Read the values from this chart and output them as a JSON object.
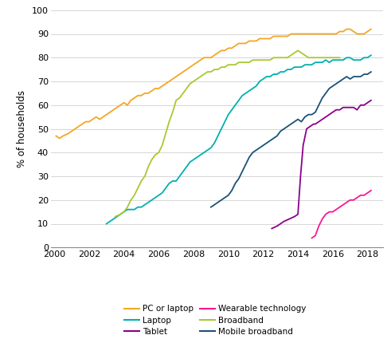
{
  "ylabel": "% of households",
  "xlim": [
    1999.8,
    2018.9
  ],
  "ylim": [
    0,
    100
  ],
  "xticks": [
    2000,
    2002,
    2004,
    2006,
    2008,
    2010,
    2012,
    2014,
    2016,
    2018
  ],
  "yticks": [
    0,
    10,
    20,
    30,
    40,
    50,
    60,
    70,
    80,
    90,
    100
  ],
  "background_color": "#ffffff",
  "grid_color": "#d0d0d0",
  "series": [
    {
      "name": "PC or laptop",
      "color": "#f5a623",
      "x": [
        2000.1,
        2000.3,
        2000.5,
        2000.8,
        2001.0,
        2001.2,
        2001.4,
        2001.6,
        2001.8,
        2002.0,
        2002.2,
        2002.4,
        2002.6,
        2002.8,
        2003.0,
        2003.2,
        2003.4,
        2003.6,
        2003.8,
        2004.0,
        2004.2,
        2004.4,
        2004.6,
        2004.8,
        2005.0,
        2005.2,
        2005.4,
        2005.6,
        2005.8,
        2006.0,
        2006.2,
        2006.4,
        2006.6,
        2006.8,
        2007.0,
        2007.2,
        2007.4,
        2007.6,
        2007.8,
        2008.0,
        2008.2,
        2008.4,
        2008.6,
        2008.8,
        2009.0,
        2009.2,
        2009.4,
        2009.6,
        2009.8,
        2010.0,
        2010.2,
        2010.4,
        2010.6,
        2010.8,
        2011.0,
        2011.2,
        2011.4,
        2011.6,
        2011.8,
        2012.0,
        2012.2,
        2012.4,
        2012.6,
        2012.8,
        2013.0,
        2013.2,
        2013.4,
        2013.6,
        2013.8,
        2014.0,
        2014.2,
        2014.4,
        2014.6,
        2014.8,
        2015.0,
        2015.2,
        2015.4,
        2015.6,
        2015.8,
        2016.0,
        2016.2,
        2016.4,
        2016.6,
        2016.8,
        2017.0,
        2017.2,
        2017.4,
        2017.6,
        2017.8,
        2018.0,
        2018.2
      ],
      "y": [
        47,
        46,
        47,
        48,
        49,
        50,
        51,
        52,
        53,
        53,
        54,
        55,
        54,
        55,
        56,
        57,
        58,
        59,
        60,
        61,
        60,
        62,
        63,
        64,
        64,
        65,
        65,
        66,
        67,
        67,
        68,
        69,
        70,
        71,
        72,
        73,
        74,
        75,
        76,
        77,
        78,
        79,
        80,
        80,
        80,
        81,
        82,
        83,
        83,
        84,
        84,
        85,
        86,
        86,
        86,
        87,
        87,
        87,
        88,
        88,
        88,
        88,
        89,
        89,
        89,
        89,
        89,
        90,
        90,
        90,
        90,
        90,
        90,
        90,
        90,
        90,
        90,
        90,
        90,
        90,
        90,
        91,
        91,
        92,
        92,
        91,
        90,
        90,
        90,
        91,
        92
      ]
    },
    {
      "name": "Laptop",
      "color": "#00b0b0",
      "x": [
        2003.0,
        2003.2,
        2003.4,
        2003.6,
        2003.8,
        2004.0,
        2004.2,
        2004.4,
        2004.6,
        2004.8,
        2005.0,
        2005.2,
        2005.4,
        2005.6,
        2005.8,
        2006.0,
        2006.2,
        2006.4,
        2006.6,
        2006.8,
        2007.0,
        2007.2,
        2007.4,
        2007.6,
        2007.8,
        2008.0,
        2008.2,
        2008.4,
        2008.6,
        2008.8,
        2009.0,
        2009.2,
        2009.4,
        2009.6,
        2009.8,
        2010.0,
        2010.2,
        2010.4,
        2010.6,
        2010.8,
        2011.0,
        2011.2,
        2011.4,
        2011.6,
        2011.8,
        2012.0,
        2012.2,
        2012.4,
        2012.6,
        2012.8,
        2013.0,
        2013.2,
        2013.4,
        2013.6,
        2013.8,
        2014.0,
        2014.2,
        2014.4,
        2014.6,
        2014.8,
        2015.0,
        2015.2,
        2015.4,
        2015.6,
        2015.8,
        2016.0,
        2016.2,
        2016.4,
        2016.6,
        2016.8,
        2017.0,
        2017.2,
        2017.4,
        2017.6,
        2017.8,
        2018.0,
        2018.2
      ],
      "y": [
        10,
        11,
        12,
        13,
        14,
        15,
        16,
        16,
        16,
        17,
        17,
        18,
        19,
        20,
        21,
        22,
        23,
        25,
        27,
        28,
        28,
        30,
        32,
        34,
        36,
        37,
        38,
        39,
        40,
        41,
        42,
        44,
        47,
        50,
        53,
        56,
        58,
        60,
        62,
        64,
        65,
        66,
        67,
        68,
        70,
        71,
        72,
        72,
        73,
        73,
        74,
        74,
        75,
        75,
        76,
        76,
        76,
        77,
        77,
        77,
        78,
        78,
        78,
        79,
        78,
        79,
        79,
        79,
        79,
        80,
        80,
        79,
        79,
        79,
        80,
        80,
        81
      ]
    },
    {
      "name": "Broadband",
      "color": "#a8c832",
      "x": [
        2003.5,
        2003.8,
        2004.0,
        2004.2,
        2004.4,
        2004.6,
        2004.8,
        2005.0,
        2005.2,
        2005.4,
        2005.6,
        2005.8,
        2006.0,
        2006.2,
        2006.4,
        2006.6,
        2006.8,
        2007.0,
        2007.2,
        2007.4,
        2007.6,
        2007.8,
        2008.0,
        2008.2,
        2008.4,
        2008.6,
        2008.8,
        2009.0,
        2009.2,
        2009.4,
        2009.6,
        2009.8,
        2010.0,
        2010.2,
        2010.4,
        2010.6,
        2010.8,
        2011.0,
        2011.2,
        2011.4,
        2011.6,
        2011.8,
        2012.0,
        2012.2,
        2012.4,
        2012.6,
        2012.8,
        2013.0,
        2013.2,
        2013.4,
        2013.6,
        2013.8,
        2014.0,
        2014.2,
        2014.4,
        2014.6,
        2014.8,
        2015.0,
        2015.2,
        2015.4,
        2015.6,
        2015.8,
        2016.0,
        2016.2,
        2016.4
      ],
      "y": [
        13,
        14,
        15,
        17,
        20,
        22,
        25,
        28,
        30,
        34,
        37,
        39,
        40,
        43,
        48,
        53,
        57,
        62,
        63,
        65,
        67,
        69,
        70,
        71,
        72,
        73,
        74,
        74,
        75,
        75,
        76,
        76,
        77,
        77,
        77,
        78,
        78,
        78,
        78,
        79,
        79,
        79,
        79,
        79,
        79,
        80,
        80,
        80,
        80,
        80,
        81,
        82,
        83,
        82,
        81,
        80,
        80,
        80,
        80,
        80,
        80,
        80,
        80,
        80,
        80
      ]
    },
    {
      "name": "Mobile broadband",
      "color": "#1a5276",
      "x": [
        2009.0,
        2009.2,
        2009.4,
        2009.6,
        2009.8,
        2010.0,
        2010.2,
        2010.4,
        2010.6,
        2010.8,
        2011.0,
        2011.2,
        2011.4,
        2011.6,
        2011.8,
        2012.0,
        2012.2,
        2012.4,
        2012.6,
        2012.8,
        2013.0,
        2013.2,
        2013.4,
        2013.6,
        2013.8,
        2014.0,
        2014.2,
        2014.4,
        2014.6,
        2014.8,
        2015.0,
        2015.2,
        2015.4,
        2015.6,
        2015.8,
        2016.0,
        2016.2,
        2016.4,
        2016.6,
        2016.8,
        2017.0,
        2017.2,
        2017.4,
        2017.6,
        2017.8,
        2018.0,
        2018.2
      ],
      "y": [
        17,
        18,
        19,
        20,
        21,
        22,
        24,
        27,
        29,
        32,
        35,
        38,
        40,
        41,
        42,
        43,
        44,
        45,
        46,
        47,
        49,
        50,
        51,
        52,
        53,
        54,
        53,
        55,
        56,
        56,
        57,
        60,
        63,
        65,
        67,
        68,
        69,
        70,
        71,
        72,
        71,
        72,
        72,
        72,
        73,
        73,
        74
      ]
    },
    {
      "name": "Tablet",
      "color": "#8b008b",
      "x": [
        2012.5,
        2012.8,
        2013.0,
        2013.2,
        2013.5,
        2013.8,
        2014.0,
        2014.15,
        2014.3,
        2014.5,
        2014.7,
        2014.9,
        2015.0,
        2015.2,
        2015.4,
        2015.6,
        2015.8,
        2016.0,
        2016.2,
        2016.4,
        2016.6,
        2016.8,
        2017.0,
        2017.2,
        2017.4,
        2017.6,
        2017.8,
        2018.0,
        2018.2
      ],
      "y": [
        8,
        9,
        10,
        11,
        12,
        13,
        14,
        30,
        43,
        50,
        51,
        52,
        52,
        53,
        54,
        55,
        56,
        57,
        58,
        58,
        59,
        59,
        59,
        59,
        58,
        60,
        60,
        61,
        62
      ]
    },
    {
      "name": "Wearable technology",
      "color": "#ff1493",
      "x": [
        2014.8,
        2015.0,
        2015.2,
        2015.4,
        2015.6,
        2015.8,
        2016.0,
        2016.2,
        2016.4,
        2016.6,
        2016.8,
        2017.0,
        2017.2,
        2017.4,
        2017.6,
        2017.8,
        2018.0,
        2018.2
      ],
      "y": [
        4,
        5,
        9,
        12,
        14,
        15,
        15,
        16,
        17,
        18,
        19,
        20,
        20,
        21,
        22,
        22,
        23,
        24
      ]
    }
  ],
  "legend": [
    {
      "name": "PC or laptop",
      "color": "#f5a623"
    },
    {
      "name": "Laptop",
      "color": "#00b0b0"
    },
    {
      "name": "Tablet",
      "color": "#8b008b"
    },
    {
      "name": "Wearable technology",
      "color": "#ff1493"
    },
    {
      "name": "Broadband",
      "color": "#a8c832"
    },
    {
      "name": "Mobile broadband",
      "color": "#1a5276"
    }
  ]
}
